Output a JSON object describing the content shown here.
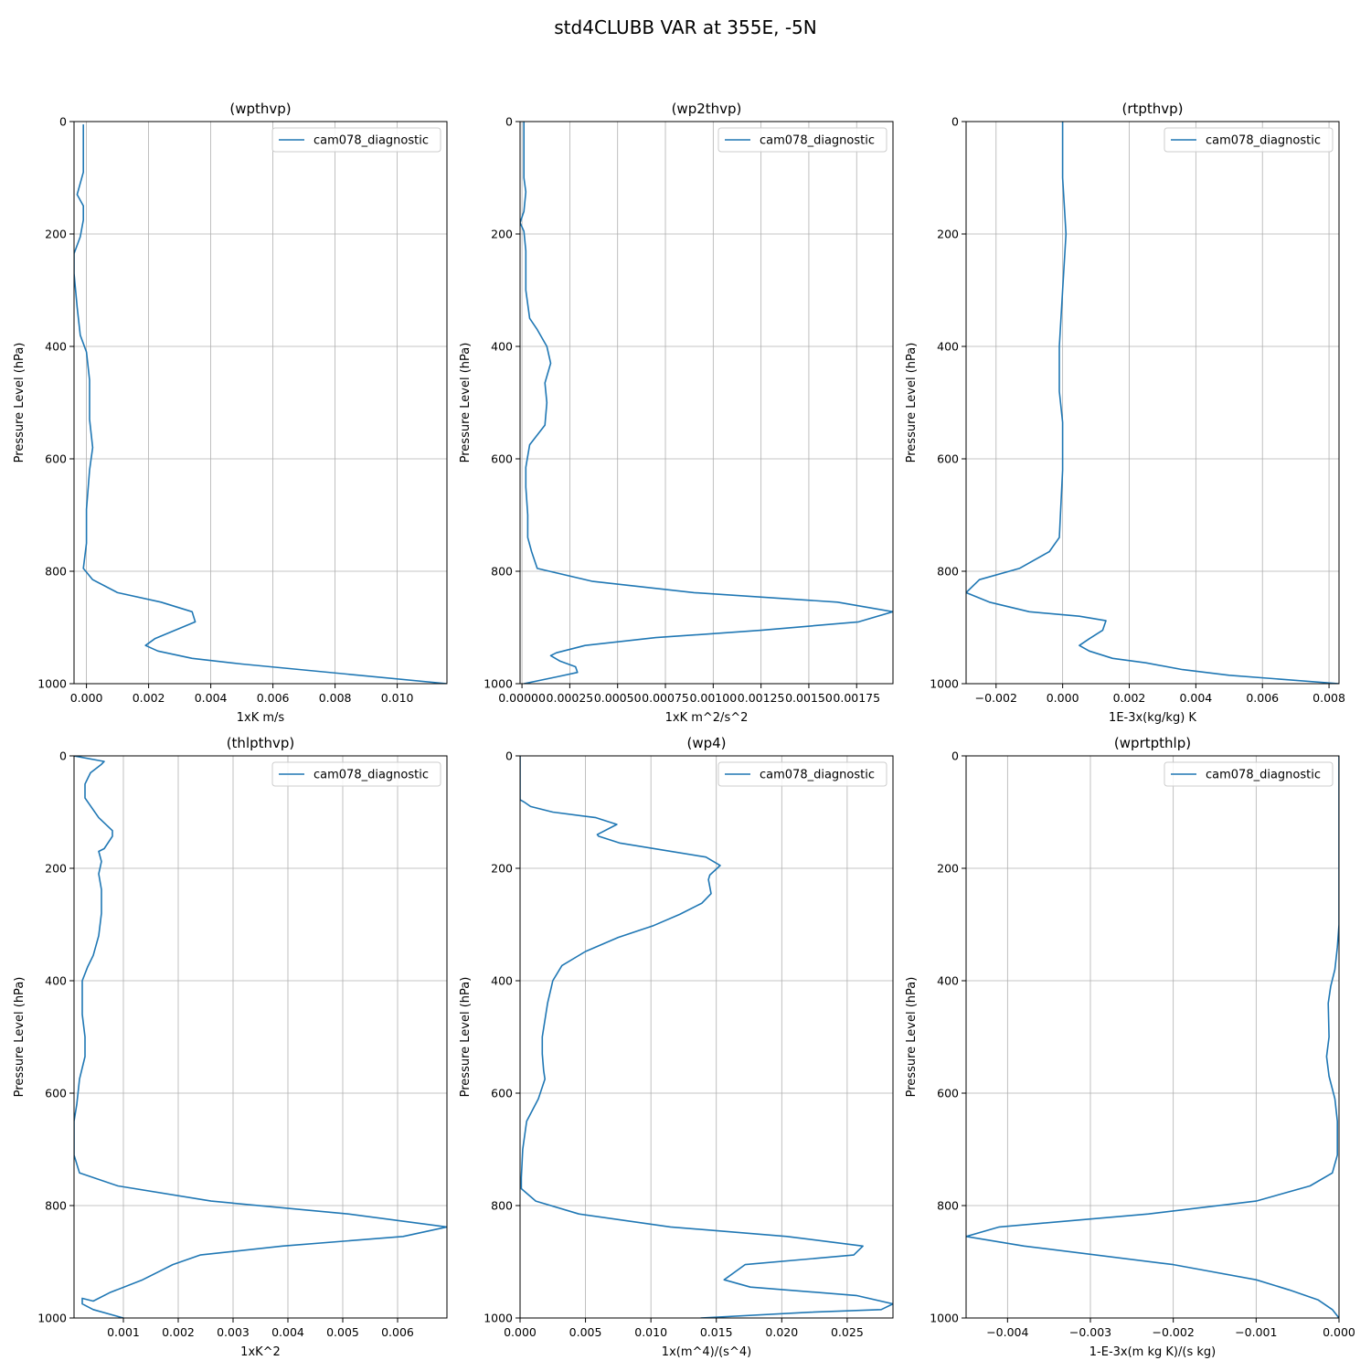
{
  "suptitle": "std4CLUBB VAR at 355E, -5N",
  "line_color": "#1f77b4",
  "grid_color": "#b0b0b0",
  "chart_data": [
    {
      "type": "line",
      "title": "(wpthvp)",
      "xlabel": "1xK m/s",
      "ylabel": "Pressure Level (hPa)",
      "xlim": [
        -0.0004,
        0.0116
      ],
      "ylim": [
        1000,
        0
      ],
      "xticks": [
        0.0,
        0.002,
        0.004,
        0.006,
        0.008,
        0.01
      ],
      "xtick_labels": [
        "0.000",
        "0.002",
        "0.004",
        "0.006",
        "0.008",
        "0.010"
      ],
      "yticks": [
        0,
        200,
        400,
        600,
        800,
        1000
      ],
      "ytick_labels": [
        "0",
        "200",
        "400",
        "600",
        "800",
        "1000"
      ],
      "grid": true,
      "legend": "top-right",
      "series": [
        {
          "name": "cam078_diagnostic",
          "x": [
            -0.0001,
            -0.0001,
            -0.0001,
            -0.0003,
            -0.0001,
            -0.0001,
            -0.0002,
            -0.0004,
            -0.0004,
            -0.0003,
            -0.0002,
            0,
            0.0001,
            0.0001,
            0.0002,
            0.0001,
            0,
            0,
            -0.0001,
            0.0002,
            0.001,
            0.0024,
            0.0034,
            0.0035,
            0.0022,
            0.0019,
            0.0023,
            0.0034,
            0.005,
            0.0116
          ],
          "y": [
            5,
            10,
            90,
            130,
            150,
            175,
            205,
            235,
            270,
            330,
            380,
            410,
            460,
            530,
            580,
            620,
            690,
            750,
            795,
            815,
            838,
            855,
            872,
            890,
            920,
            932,
            942,
            955,
            965,
            1000
          ]
        }
      ]
    },
    {
      "type": "line",
      "title": "(wp2thvp)",
      "xlabel": "1xK m^2/s^2",
      "ylabel": "Pressure Level (hPa)",
      "xlim": [
        -1e-05,
        0.00194
      ],
      "ylim": [
        1000,
        0
      ],
      "xticks": [
        0.0,
        0.00025,
        0.0005,
        0.00075,
        0.001,
        0.00125,
        0.0015,
        0.00175
      ],
      "xtick_labels": [
        "0.00000",
        "0.00025",
        "0.00050",
        "0.00075",
        "0.00100",
        "0.00125",
        "0.00150",
        "0.00175"
      ],
      "yticks": [
        0,
        200,
        400,
        600,
        800,
        1000
      ],
      "ytick_labels": [
        "0",
        "200",
        "400",
        "600",
        "800",
        "1000"
      ],
      "grid": true,
      "legend": "top-right",
      "series": [
        {
          "name": "cam078_diagnostic",
          "x": [
            1e-05,
            1e-05,
            1e-05,
            2e-05,
            1e-05,
            -1e-05,
            1e-05,
            2e-05,
            2e-05,
            4e-05,
            8e-05,
            0.00013,
            0.00015,
            0.00012,
            0.00013,
            0.00012,
            4e-05,
            2e-05,
            2e-05,
            3e-05,
            3e-05,
            5e-05,
            8e-05,
            0.00037,
            0.0009,
            0.00165,
            0.00194,
            0.00176,
            0.00125,
            0.0007,
            0.00033,
            0.00018,
            0.00015,
            0.0002,
            0.00028,
            0.00029,
            0.00018,
            1e-05
          ],
          "y": [
            0,
            60,
            100,
            125,
            160,
            180,
            195,
            230,
            300,
            350,
            370,
            400,
            430,
            465,
            500,
            540,
            575,
            615,
            650,
            700,
            740,
            765,
            795,
            818,
            838,
            855,
            872,
            890,
            905,
            918,
            932,
            945,
            950,
            960,
            970,
            980,
            988,
            1000
          ]
        }
      ]
    },
    {
      "type": "line",
      "title": "(rtpthvp)",
      "xlabel": "1E-3x(kg/kg) K",
      "ylabel": "Pressure Level (hPa)",
      "xlim": [
        -0.0029,
        0.0083
      ],
      "ylim": [
        1000,
        0
      ],
      "xticks": [
        -0.002,
        0.0,
        0.002,
        0.004,
        0.006,
        0.008
      ],
      "xtick_labels": [
        "−0.002",
        "0.000",
        "0.002",
        "0.004",
        "0.006",
        "0.008"
      ],
      "yticks": [
        0,
        200,
        400,
        600,
        800,
        1000
      ],
      "ytick_labels": [
        "0",
        "200",
        "400",
        "600",
        "800",
        "1000"
      ],
      "grid": true,
      "legend": "top-right",
      "series": [
        {
          "name": "cam078_diagnostic",
          "x": [
            0,
            0,
            0.0001,
            0,
            -0.0001,
            -0.0001,
            0,
            0,
            -0.0001,
            -0.0004,
            -0.0013,
            -0.0025,
            -0.0029,
            -0.0022,
            -0.001,
            0.0005,
            0.0013,
            0.0012,
            0.0008,
            0.0005,
            0.0008,
            0.0015,
            0.0025,
            0.0036,
            0.005,
            0.0083
          ],
          "y": [
            0,
            100,
            200,
            300,
            400,
            480,
            535,
            620,
            740,
            765,
            795,
            815,
            838,
            855,
            872,
            880,
            888,
            905,
            920,
            932,
            942,
            955,
            963,
            975,
            985,
            1000
          ]
        }
      ]
    },
    {
      "type": "line",
      "title": "(thlpthvp)",
      "xlabel": "1xK^2",
      "ylabel": "Pressure Level (hPa)",
      "xlim": [
        0.0001,
        0.0069
      ],
      "ylim": [
        1000,
        0
      ],
      "xticks": [
        0.001,
        0.002,
        0.003,
        0.004,
        0.005,
        0.006
      ],
      "xtick_labels": [
        "0.001",
        "0.002",
        "0.003",
        "0.004",
        "0.005",
        "0.006"
      ],
      "yticks": [
        0,
        200,
        400,
        600,
        800,
        1000
      ],
      "ytick_labels": [
        "0",
        "200",
        "400",
        "600",
        "800",
        "1000"
      ],
      "grid": true,
      "legend": "top-right",
      "series": [
        {
          "name": "cam078_diagnostic",
          "x": [
            0.0001,
            0.00065,
            0.0006,
            0.0004,
            0.0003,
            0.0003,
            0.00055,
            0.0008,
            0.0008,
            0.00065,
            0.00055,
            0.0006,
            0.00055,
            0.0006,
            0.0006,
            0.00055,
            0.00045,
            0.00035,
            0.00025,
            0.00025,
            0.0003,
            0.0003,
            0.0002,
            0.00015,
            0.0001,
            0.0001,
            0.0002,
            0.0009,
            0.0026,
            0.0051,
            0.0069,
            0.0061,
            0.0039,
            0.0024,
            0.0019,
            0.0017,
            0.00135,
            0.00075,
            0.00045,
            0.00025,
            0.00025,
            0.00045,
            0.001
          ],
          "y": [
            0,
            10,
            15,
            30,
            50,
            75,
            110,
            133,
            143,
            165,
            170,
            188,
            210,
            238,
            280,
            320,
            355,
            375,
            400,
            460,
            500,
            535,
            575,
            620,
            650,
            710,
            742,
            765,
            792,
            815,
            838,
            855,
            872,
            888,
            905,
            915,
            932,
            955,
            970,
            965,
            975,
            985,
            1000
          ]
        }
      ]
    },
    {
      "type": "line",
      "title": "(wp4)",
      "xlabel": "1x(m^4)/(s^4)",
      "ylabel": "Pressure Level (hPa)",
      "xlim": [
        0.0,
        0.0285
      ],
      "ylim": [
        1000,
        0
      ],
      "xticks": [
        0.0,
        0.005,
        0.01,
        0.015,
        0.02,
        0.025
      ],
      "xtick_labels": [
        "0.000",
        "0.005",
        "0.010",
        "0.015",
        "0.020",
        "0.025"
      ],
      "yticks": [
        0,
        200,
        400,
        600,
        800,
        1000
      ],
      "ytick_labels": [
        "0",
        "200",
        "400",
        "600",
        "800",
        "1000"
      ],
      "grid": true,
      "legend": "top-right",
      "series": [
        {
          "name": "cam078_diagnostic",
          "x": [
            0.0,
            0.0,
            0.0003,
            0.0008,
            0.0025,
            0.0058,
            0.0074,
            0.0059,
            0.006,
            0.0076,
            0.0142,
            0.0153,
            0.0145,
            0.0144,
            0.0146,
            0.0139,
            0.0122,
            0.0102,
            0.0075,
            0.005,
            0.0032,
            0.0025,
            0.0024,
            0.0021,
            0.0017,
            0.0017,
            0.0018,
            0.0019,
            0.0014,
            0.0005,
            0.0002,
            0.0001,
            0.0001,
            0.0012,
            0.0045,
            0.0115,
            0.0204,
            0.0262,
            0.0255,
            0.0172,
            0.0156,
            0.0176,
            0.0257,
            0.0285,
            0.0276,
            0.022,
            0.0138
          ],
          "y": [
            0,
            78,
            82,
            90,
            100,
            110,
            122,
            140,
            143,
            155,
            180,
            195,
            212,
            220,
            245,
            262,
            282,
            302,
            323,
            348,
            373,
            400,
            410,
            440,
            500,
            530,
            560,
            575,
            610,
            650,
            700,
            750,
            770,
            792,
            815,
            838,
            855,
            872,
            888,
            905,
            932,
            945,
            960,
            975,
            985,
            990,
            1000
          ]
        }
      ]
    },
    {
      "type": "line",
      "title": "(wprtpthlp)",
      "xlabel": "1-E-3x(m kg K)/(s kg)",
      "ylabel": "Pressure Level (hPa)",
      "xlim": [
        -0.0045,
        0.0
      ],
      "ylim": [
        1000,
        0
      ],
      "xticks": [
        -0.004,
        -0.003,
        -0.002,
        -0.001,
        0.0
      ],
      "xtick_labels": [
        "−0.004",
        "−0.003",
        "−0.002",
        "−0.001",
        "0.000"
      ],
      "yticks": [
        0,
        200,
        400,
        600,
        800,
        1000
      ],
      "ytick_labels": [
        "0",
        "200",
        "400",
        "600",
        "800",
        "1000"
      ],
      "grid": true,
      "legend": "top-right",
      "series": [
        {
          "name": "cam078_diagnostic",
          "x": [
            0.0,
            0.0,
            0.0,
            -2e-05,
            -5e-05,
            -0.0001,
            -0.00013,
            -0.00012,
            -0.00015,
            -0.00012,
            -5e-05,
            -2e-05,
            -2e-05,
            -8e-05,
            -0.00035,
            -0.001,
            -0.0023,
            -0.0041,
            -0.0045,
            -0.0038,
            -0.002,
            -0.001,
            -0.0006,
            -0.00025,
            -8e-05,
            0.0
          ],
          "y": [
            0,
            200,
            300,
            340,
            380,
            410,
            440,
            500,
            535,
            570,
            610,
            650,
            710,
            742,
            765,
            792,
            815,
            838,
            855,
            872,
            905,
            932,
            950,
            968,
            985,
            1000
          ]
        }
      ]
    }
  ]
}
